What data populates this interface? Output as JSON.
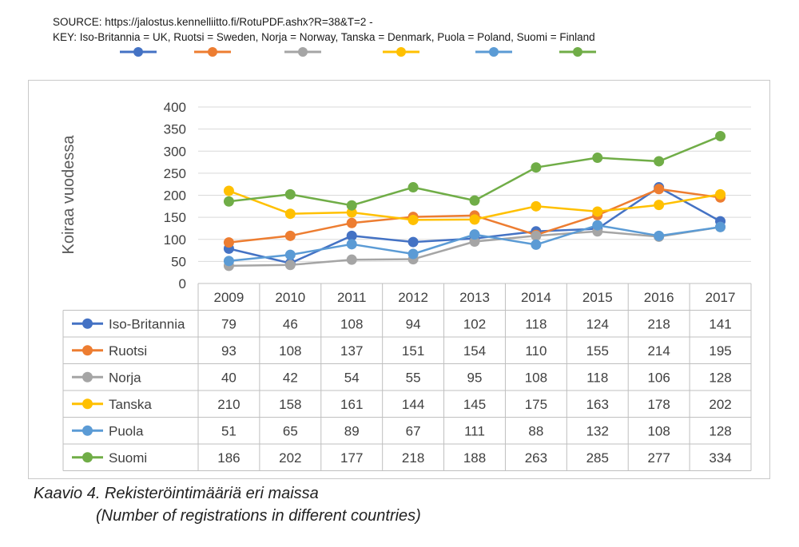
{
  "header": {
    "source_line": "SOURCE: https://jalostus.kennelliitto.fi/RotuPDF.ashx?R=38&T=2 -",
    "key_line": "KEY: Iso-Britannia = UK, Ruotsi = Sweden, Norja = Norway, Tanska = Denmark, Puola = Poland, Suomi = Finland"
  },
  "caption": {
    "line1": "Kaavio 4. Rekisteröintimääriä eri maissa",
    "line2": "(Number of registrations in different countries)"
  },
  "chart_data": {
    "type": "line",
    "title": "",
    "xlabel": "",
    "ylabel": "Koiraa vuodessa",
    "ylim": [
      0,
      400
    ],
    "yticks": [
      0,
      50,
      100,
      150,
      200,
      250,
      300,
      350,
      400
    ],
    "grid": true,
    "legend": "data-table",
    "categories": [
      "2009",
      "2010",
      "2011",
      "2012",
      "2013",
      "2014",
      "2015",
      "2016",
      "2017"
    ],
    "series": [
      {
        "name": "Iso-Britannia",
        "color": "#4472c4",
        "values": [
          79,
          46,
          108,
          94,
          102,
          118,
          124,
          218,
          141
        ]
      },
      {
        "name": "Ruotsi",
        "color": "#ed7d31",
        "values": [
          93,
          108,
          137,
          151,
          154,
          110,
          155,
          214,
          195
        ]
      },
      {
        "name": "Norja",
        "color": "#a5a5a5",
        "values": [
          40,
          42,
          54,
          55,
          95,
          108,
          118,
          106,
          128
        ]
      },
      {
        "name": "Tanska",
        "color": "#ffc000",
        "values": [
          210,
          158,
          161,
          144,
          145,
          175,
          163,
          178,
          202
        ]
      },
      {
        "name": "Puola",
        "color": "#5b9bd5",
        "values": [
          51,
          65,
          89,
          67,
          111,
          88,
          132,
          108,
          128
        ]
      },
      {
        "name": "Suomi",
        "color": "#70ad47",
        "values": [
          186,
          202,
          177,
          218,
          188,
          263,
          285,
          277,
          334
        ]
      }
    ]
  }
}
